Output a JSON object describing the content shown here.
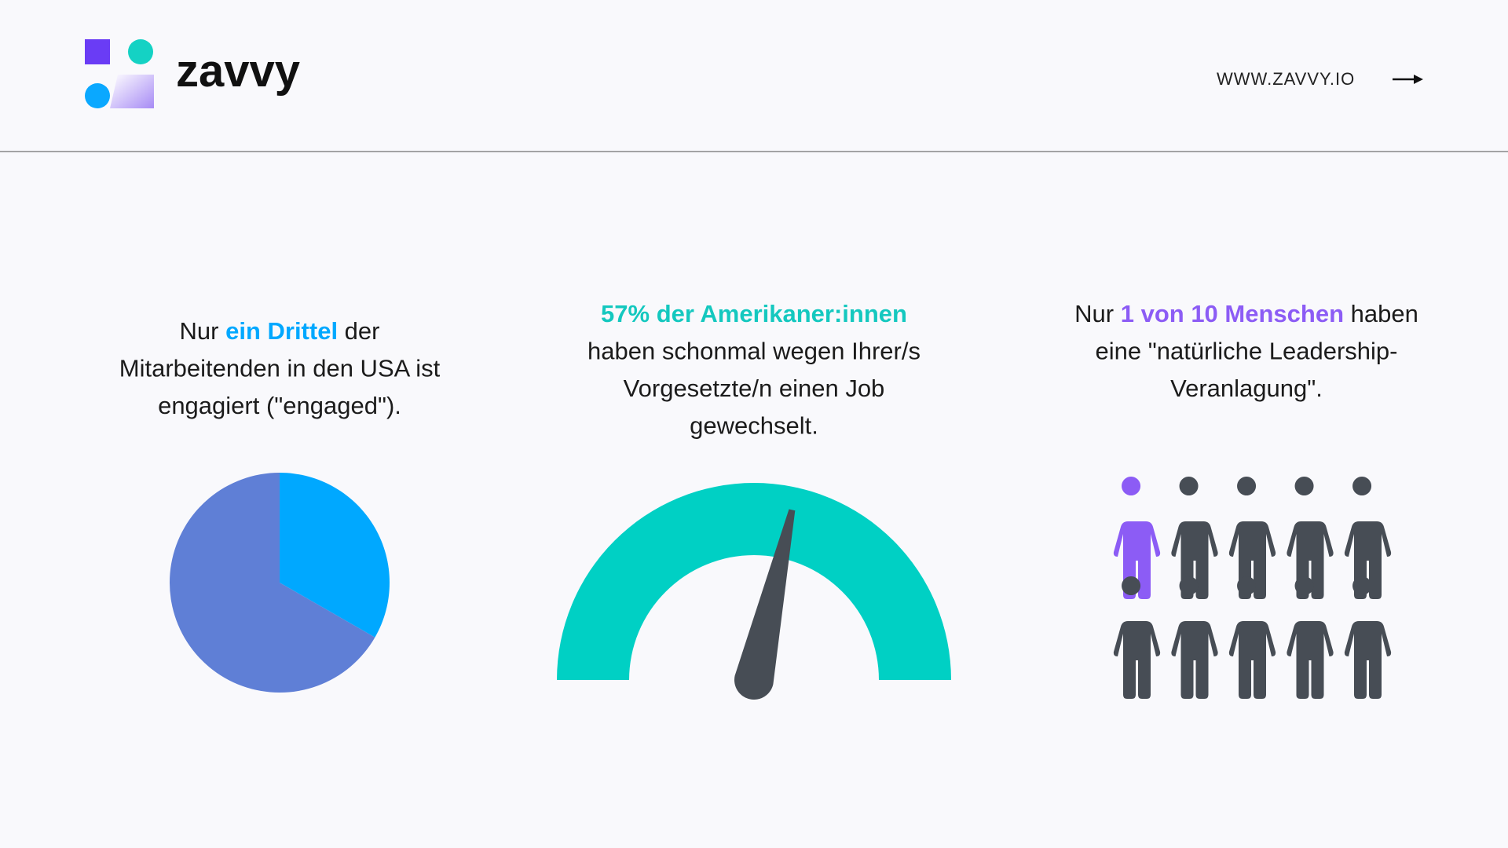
{
  "header": {
    "logo_text": "zavvy",
    "url": "WWW.ZAVVY.IO"
  },
  "chart_data": [
    {
      "type": "pie",
      "caption": [
        [
          {
            "text": "Nur "
          },
          {
            "text": "ein Drittel",
            "color": "#00a8ff",
            "bold": true
          },
          {
            "text": " der"
          }
        ],
        [
          {
            "text": "Mitarbeitenden in den USA ist"
          }
        ],
        [
          {
            "text": "engagiert (\"engaged\")."
          }
        ]
      ],
      "values": [
        33.3,
        66.7
      ],
      "colors": [
        "#00a8ff",
        "#5f7fd6"
      ]
    },
    {
      "type": "gauge",
      "caption": [
        [
          {
            "text": "57% der Amerikaner:innen",
            "color": "#14c8bf",
            "bold": true
          }
        ],
        [
          {
            "text": "haben schonmal wegen Ihrer/s"
          }
        ],
        [
          {
            "text": "Vorgesetzte/n einen Job"
          }
        ],
        [
          {
            "text": "gewechselt."
          }
        ]
      ],
      "value": 57,
      "ylim": [
        0,
        100
      ],
      "color": "#00d0c4",
      "needle_color": "#474d55"
    },
    {
      "type": "pictogram",
      "caption": [
        [
          {
            "text": "Nur "
          },
          {
            "text": "1 von 10 Menschen",
            "color": "#8c5cf5",
            "bold": true
          },
          {
            "text": " haben"
          }
        ],
        [
          {
            "text": "eine \"natürliche Leadership-"
          }
        ],
        [
          {
            "text": "Veranlagung\"."
          }
        ]
      ],
      "values": [
        1,
        9
      ],
      "colors": [
        "#8c5cf5",
        "#474d55"
      ]
    }
  ]
}
